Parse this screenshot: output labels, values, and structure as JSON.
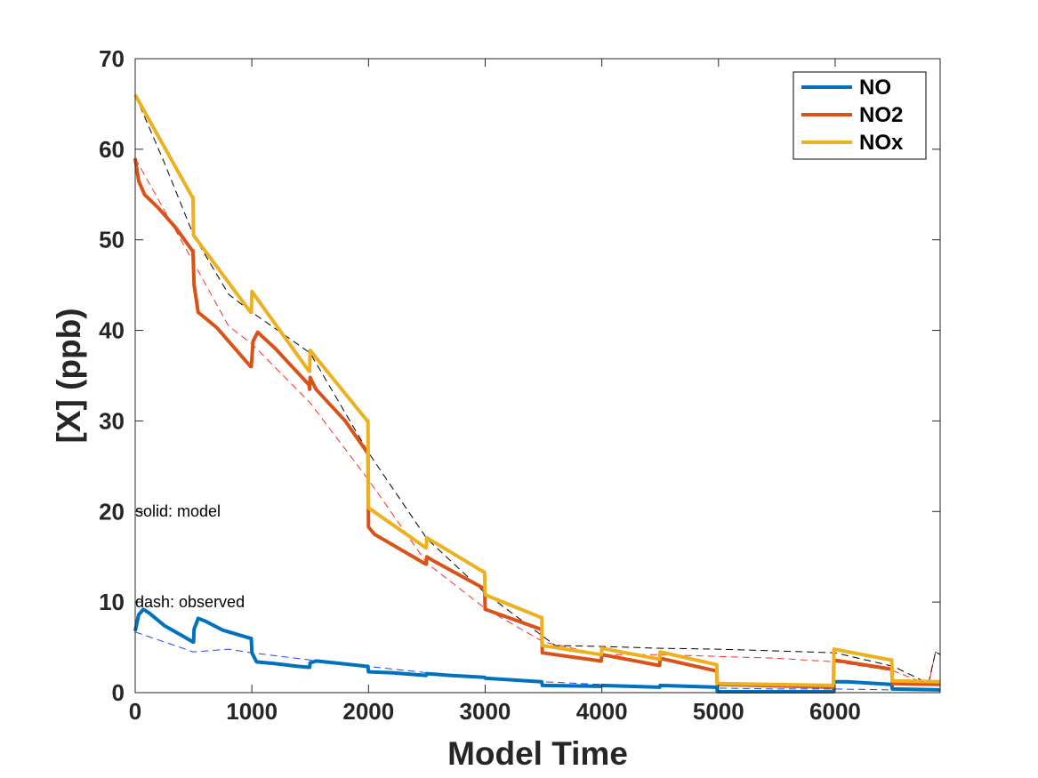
{
  "chart_data": {
    "type": "line",
    "title": "",
    "xlabel": "Model Time",
    "ylabel": "[X] (ppb)",
    "xlim": [
      0,
      6900
    ],
    "ylim": [
      0,
      70
    ],
    "xticks": [
      0,
      1000,
      2000,
      3000,
      4000,
      5000,
      6000
    ],
    "yticks": [
      0,
      10,
      20,
      30,
      40,
      50,
      60,
      70
    ],
    "grid": false,
    "legend": {
      "placement": "top-right",
      "entries": [
        "NO",
        "NO2",
        "NOx"
      ]
    },
    "annotations": [
      {
        "text": "solid: model",
        "x": 0,
        "y": 20
      },
      {
        "text": "dash: observed",
        "x": 0,
        "y": 10
      }
    ],
    "colors": {
      "NO": "#0072bd",
      "NO2": "#d95319",
      "NOx": "#edb120",
      "obs_NO": "#1f3fff",
      "obs_NO2": "#ff2a2a",
      "obs_NOx": "#000000"
    },
    "series": [
      {
        "name": "NO",
        "style": "solid",
        "color": "#0072bd",
        "points": [
          [
            0,
            6.8
          ],
          [
            30,
            8.6
          ],
          [
            70,
            9.2
          ],
          [
            120,
            8.8
          ],
          [
            250,
            7.4
          ],
          [
            400,
            6.3
          ],
          [
            495,
            5.6
          ],
          [
            500,
            5.6
          ],
          [
            505,
            7.0
          ],
          [
            540,
            8.2
          ],
          [
            600,
            7.9
          ],
          [
            750,
            6.9
          ],
          [
            990,
            6.0
          ],
          [
            995,
            6.0
          ],
          [
            1000,
            4.4
          ],
          [
            1040,
            3.4
          ],
          [
            1200,
            3.2
          ],
          [
            1400,
            2.9
          ],
          [
            1490,
            2.8
          ],
          [
            1495,
            2.8
          ],
          [
            1500,
            3.3
          ],
          [
            1550,
            3.5
          ],
          [
            1700,
            3.3
          ],
          [
            1990,
            2.9
          ],
          [
            1995,
            2.9
          ],
          [
            2000,
            2.3
          ],
          [
            2200,
            2.2
          ],
          [
            2490,
            1.9
          ],
          [
            2495,
            1.9
          ],
          [
            2500,
            2.1
          ],
          [
            2700,
            1.9
          ],
          [
            2990,
            1.7
          ],
          [
            2995,
            1.7
          ],
          [
            3000,
            1.6
          ],
          [
            3480,
            1.2
          ],
          [
            3485,
            1.2
          ],
          [
            3490,
            0.8
          ],
          [
            3990,
            0.7
          ],
          [
            3995,
            0.7
          ],
          [
            4000,
            0.8
          ],
          [
            4490,
            0.6
          ],
          [
            4495,
            0.6
          ],
          [
            4500,
            0.8
          ],
          [
            4980,
            0.6
          ],
          [
            4985,
            0.6
          ],
          [
            4990,
            0.1
          ],
          [
            5980,
            0.1
          ],
          [
            5985,
            0.1
          ],
          [
            5990,
            1.2
          ],
          [
            6100,
            1.2
          ],
          [
            6480,
            0.9
          ],
          [
            6485,
            0.9
          ],
          [
            6490,
            0.4
          ],
          [
            6900,
            0.3
          ]
        ]
      },
      {
        "name": "NO2",
        "style": "solid",
        "color": "#d95319",
        "points": [
          [
            0,
            59.0
          ],
          [
            30,
            56.5
          ],
          [
            80,
            55.0
          ],
          [
            200,
            53.5
          ],
          [
            350,
            51.3
          ],
          [
            490,
            48.8
          ],
          [
            495,
            48.8
          ],
          [
            505,
            45.0
          ],
          [
            540,
            42.0
          ],
          [
            700,
            40.3
          ],
          [
            990,
            36.0
          ],
          [
            995,
            36.0
          ],
          [
            1010,
            38.8
          ],
          [
            1050,
            39.8
          ],
          [
            1200,
            38.0
          ],
          [
            1490,
            34.0
          ],
          [
            1495,
            33.5
          ],
          [
            1500,
            34.8
          ],
          [
            1550,
            33.5
          ],
          [
            1800,
            30.0
          ],
          [
            1990,
            26.5
          ],
          [
            1995,
            26.5
          ],
          [
            2000,
            18.3
          ],
          [
            2050,
            17.5
          ],
          [
            2490,
            14.2
          ],
          [
            2495,
            14.2
          ],
          [
            2500,
            15.0
          ],
          [
            2550,
            14.6
          ],
          [
            2990,
            11.5
          ],
          [
            2995,
            11.5
          ],
          [
            3000,
            9.2
          ],
          [
            3480,
            7.0
          ],
          [
            3485,
            7.0
          ],
          [
            3490,
            4.4
          ],
          [
            3990,
            3.5
          ],
          [
            3995,
            3.5
          ],
          [
            4000,
            4.2
          ],
          [
            4490,
            3.0
          ],
          [
            4495,
            3.0
          ],
          [
            4500,
            3.8
          ],
          [
            4980,
            2.4
          ],
          [
            4985,
            2.4
          ],
          [
            4990,
            0.9
          ],
          [
            5980,
            0.6
          ],
          [
            5985,
            0.6
          ],
          [
            5990,
            3.6
          ],
          [
            6480,
            2.6
          ],
          [
            6485,
            2.6
          ],
          [
            6490,
            1.0
          ],
          [
            6900,
            0.9
          ]
        ]
      },
      {
        "name": "NOx",
        "style": "solid",
        "color": "#edb120",
        "points": [
          [
            0,
            66.0
          ],
          [
            490,
            54.7
          ],
          [
            495,
            54.7
          ],
          [
            500,
            50.5
          ],
          [
            990,
            42.0
          ],
          [
            995,
            42.0
          ],
          [
            1000,
            44.3
          ],
          [
            1490,
            35.5
          ],
          [
            1495,
            35.5
          ],
          [
            1500,
            37.8
          ],
          [
            1990,
            30.0
          ],
          [
            1995,
            30.0
          ],
          [
            2000,
            20.4
          ],
          [
            2490,
            16.0
          ],
          [
            2495,
            16.0
          ],
          [
            2500,
            17.1
          ],
          [
            2990,
            13.3
          ],
          [
            2995,
            13.3
          ],
          [
            3000,
            10.8
          ],
          [
            3480,
            8.3
          ],
          [
            3485,
            8.3
          ],
          [
            3490,
            5.2
          ],
          [
            3990,
            4.2
          ],
          [
            3995,
            4.2
          ],
          [
            4000,
            4.9
          ],
          [
            4490,
            3.7
          ],
          [
            4495,
            3.7
          ],
          [
            4500,
            4.5
          ],
          [
            4980,
            3.1
          ],
          [
            4985,
            3.1
          ],
          [
            4990,
            1.0
          ],
          [
            5980,
            0.8
          ],
          [
            5985,
            0.8
          ],
          [
            5990,
            4.8
          ],
          [
            6480,
            3.6
          ],
          [
            6485,
            3.6
          ],
          [
            6490,
            1.3
          ],
          [
            6900,
            1.2
          ]
        ]
      },
      {
        "name": "",
        "style": "dashed",
        "color": "#1f3fff",
        "points": [
          [
            0,
            6.7
          ],
          [
            500,
            4.5
          ],
          [
            800,
            4.8
          ],
          [
            1000,
            4.4
          ],
          [
            1500,
            3.6
          ],
          [
            2000,
            2.9
          ],
          [
            2500,
            2.2
          ],
          [
            3000,
            1.7
          ],
          [
            3500,
            1.2
          ],
          [
            4000,
            0.9
          ],
          [
            4500,
            0.7
          ],
          [
            5000,
            0.5
          ],
          [
            5500,
            0.4
          ],
          [
            6000,
            0.4
          ],
          [
            6500,
            0.3
          ],
          [
            6900,
            0.3
          ]
        ]
      },
      {
        "name": "",
        "style": "dashed",
        "color": "#ff2a2a",
        "points": [
          [
            0,
            59.0
          ],
          [
            500,
            47.5
          ],
          [
            800,
            40.5
          ],
          [
            1000,
            38.5
          ],
          [
            1500,
            32.0
          ],
          [
            2000,
            23.5
          ],
          [
            2500,
            14.3
          ],
          [
            3000,
            9.3
          ],
          [
            3500,
            5.6
          ],
          [
            4000,
            4.2
          ],
          [
            4500,
            4.2
          ],
          [
            5000,
            4.0
          ],
          [
            5500,
            3.8
          ],
          [
            6000,
            3.4
          ],
          [
            6500,
            2.4
          ],
          [
            6800,
            0.9
          ],
          [
            6860,
            4.5
          ],
          [
            6900,
            4.2
          ]
        ]
      },
      {
        "name": "",
        "style": "dashed",
        "color": "#000000",
        "points": [
          [
            0,
            66.0
          ],
          [
            250,
            58.5
          ],
          [
            500,
            50.5
          ],
          [
            800,
            44.0
          ],
          [
            1000,
            42.0
          ],
          [
            1500,
            37.5
          ],
          [
            2000,
            26.5
          ],
          [
            2500,
            17.0
          ],
          [
            3000,
            11.0
          ],
          [
            3600,
            5.2
          ],
          [
            4000,
            5.1
          ],
          [
            4500,
            4.9
          ],
          [
            5000,
            4.8
          ],
          [
            5500,
            4.6
          ],
          [
            6000,
            4.4
          ],
          [
            6500,
            2.9
          ],
          [
            6800,
            1.0
          ],
          [
            6860,
            4.5
          ],
          [
            6900,
            4.2
          ]
        ]
      }
    ]
  }
}
